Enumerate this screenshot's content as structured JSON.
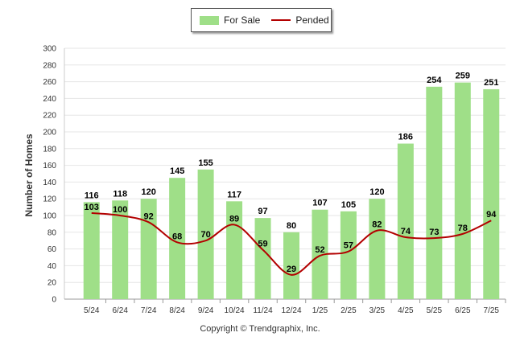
{
  "chart_data": {
    "type": "bar",
    "categories": [
      "5/24",
      "6/24",
      "7/24",
      "8/24",
      "9/24",
      "10/24",
      "11/24",
      "12/24",
      "1/25",
      "2/25",
      "3/25",
      "4/25",
      "5/25",
      "6/25",
      "7/25"
    ],
    "series": [
      {
        "name": "For Sale",
        "type": "bar",
        "color": "#9fdf88",
        "values": [
          116,
          118,
          120,
          145,
          155,
          117,
          97,
          80,
          107,
          105,
          120,
          186,
          254,
          259,
          251
        ]
      },
      {
        "name": "Pended",
        "type": "line",
        "color": "#b30000",
        "values": [
          103,
          100,
          92,
          68,
          70,
          89,
          59,
          29,
          52,
          57,
          82,
          74,
          73,
          78,
          94
        ]
      }
    ],
    "ylabel": "Number of Homes",
    "xlabel": "",
    "ylim": [
      0,
      300
    ],
    "yticks": [
      0,
      20,
      40,
      60,
      80,
      100,
      120,
      140,
      160,
      180,
      200,
      220,
      240,
      260,
      280,
      300
    ],
    "grid": true,
    "legend_position": "top-center"
  },
  "footer": {
    "copyright": "Copyright © Trendgraphix, Inc."
  }
}
